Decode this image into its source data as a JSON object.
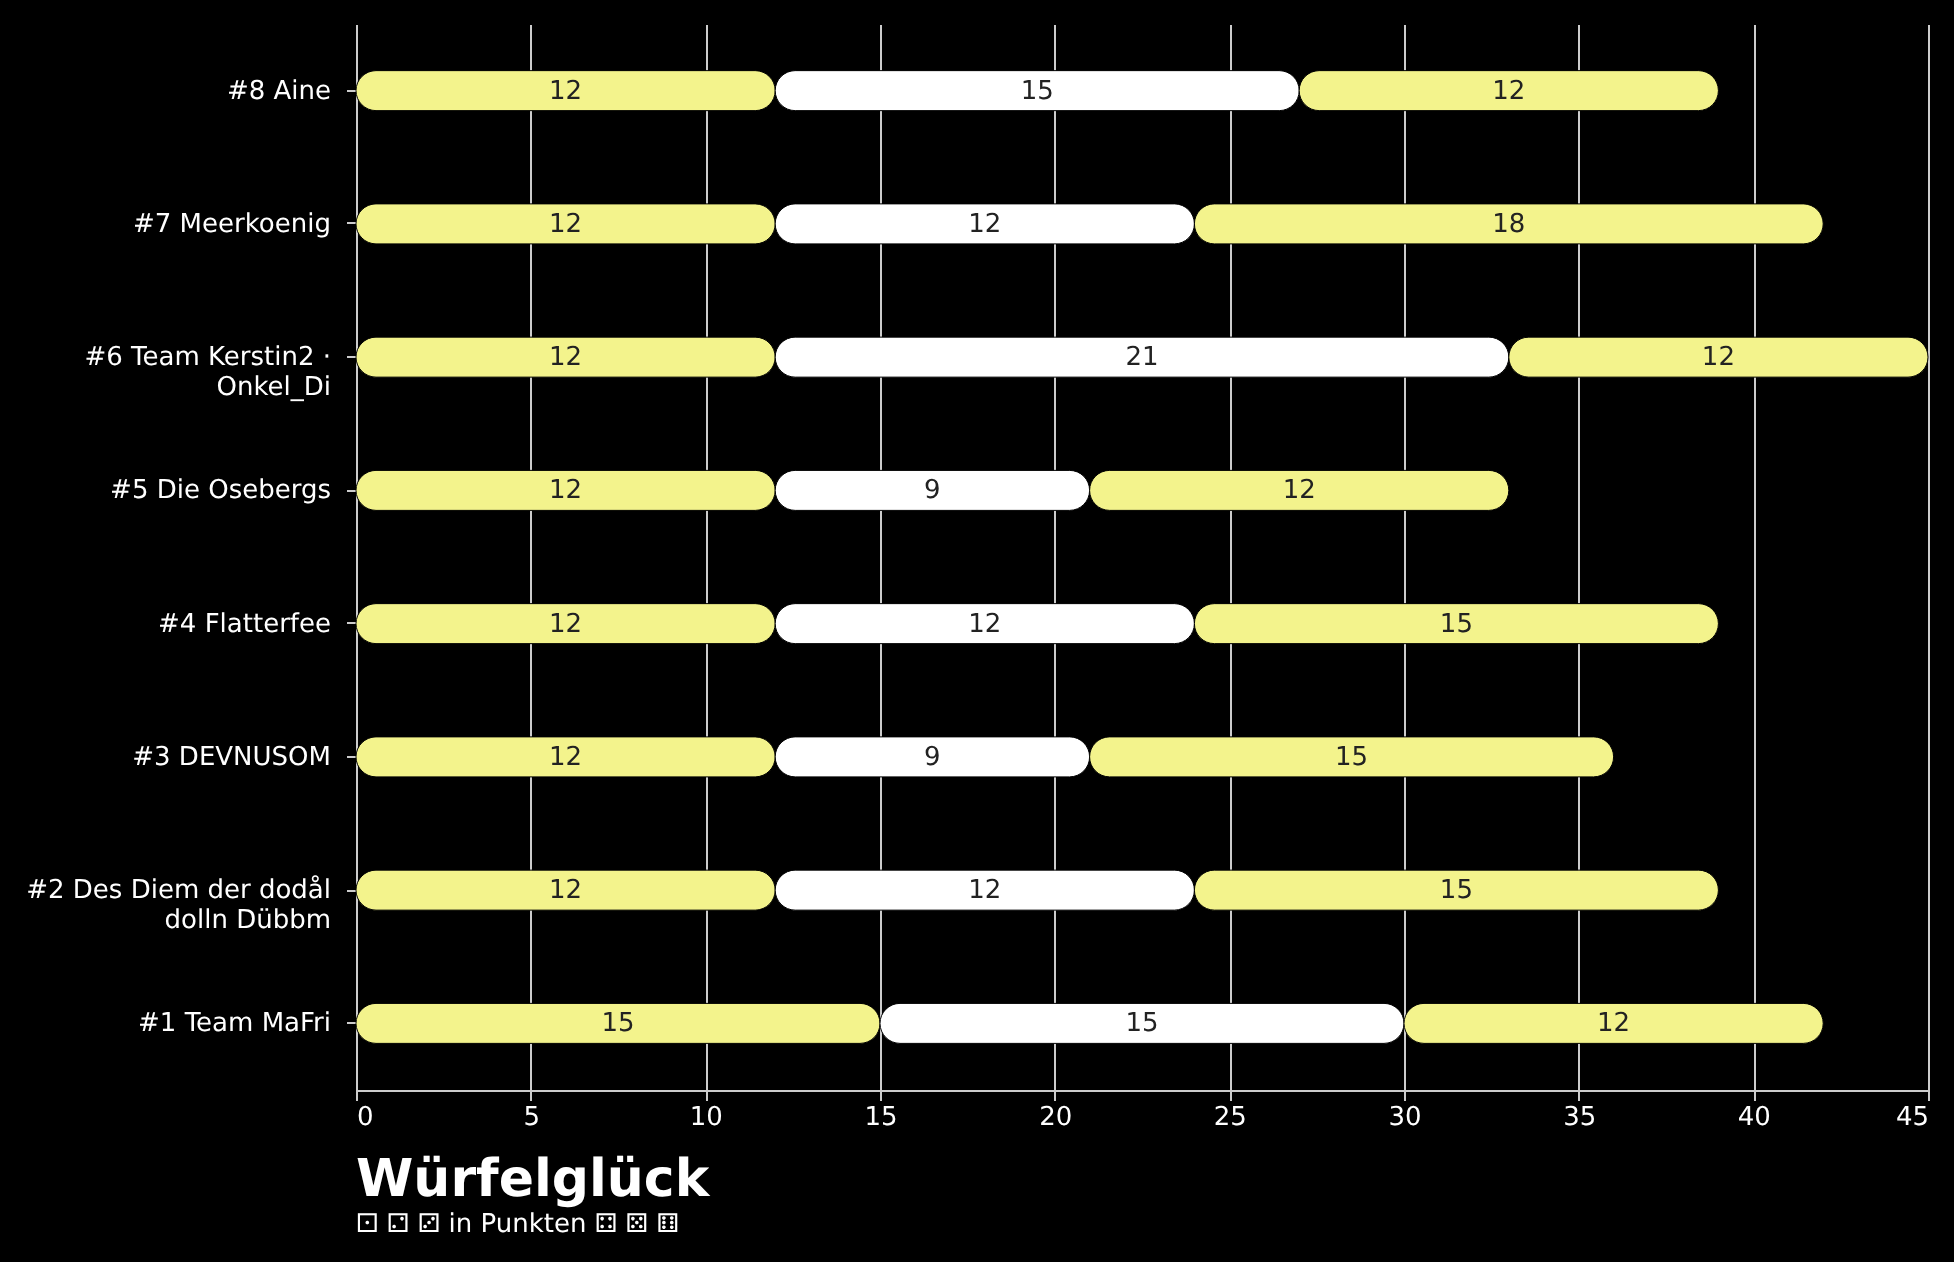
{
  "chart_data": {
    "type": "bar",
    "orientation": "horizontal",
    "stacked": true,
    "title": "Würfelglück",
    "subtitle": "⚀ ⚁ ⚂ in Punkten ⚃ ⚄ ⚅",
    "categories": [
      "#8 Aine",
      "#7 Meerkoenig",
      "#6 Team Kerstin2 ·\nOnkel_Di",
      "#5 Die Osebergs",
      "#4 Flatterfee",
      "#3 DEVNUSOM",
      "#2 Des Diem der dodål\ndolln Dübbm",
      "#1 Team MaFri"
    ],
    "series": [
      {
        "color": "#f3f38c",
        "values": [
          12,
          12,
          12,
          12,
          12,
          12,
          12,
          15
        ]
      },
      {
        "color": "#ffffff",
        "values": [
          15,
          12,
          21,
          9,
          12,
          9,
          12,
          15
        ]
      },
      {
        "color": "#f3f38c",
        "values": [
          12,
          18,
          12,
          12,
          15,
          15,
          15,
          12
        ]
      }
    ],
    "xlim": [
      0,
      45
    ],
    "xticks": [
      0,
      5,
      10,
      15,
      20,
      25,
      30,
      35,
      40,
      45
    ],
    "grid": "x",
    "data_labels": true
  }
}
